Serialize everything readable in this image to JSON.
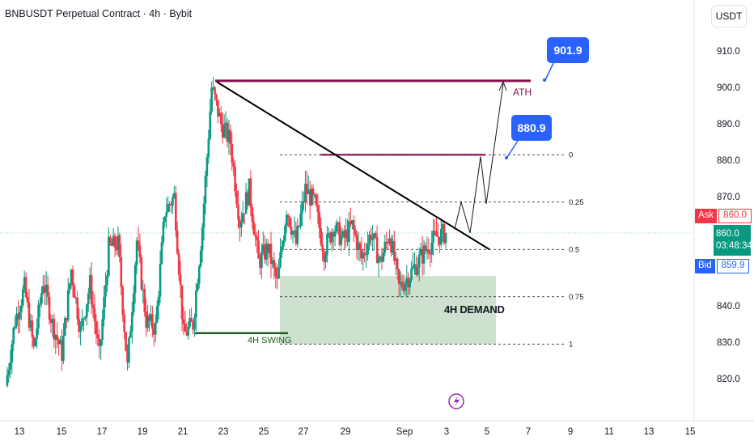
{
  "header": {
    "title": "BNBUSDT Perpetual Contract · 4h · Bybit",
    "currency": "USDT"
  },
  "chart_data": {
    "type": "candlestick",
    "x_ticks": [
      "13",
      "15",
      "17",
      "19",
      "21",
      "23",
      "25",
      "27",
      "29",
      "Sep",
      "3",
      "5",
      "7",
      "9",
      "11",
      "13",
      "15"
    ],
    "y_ticks": [
      "910.0",
      "900.0",
      "890.0",
      "880.0",
      "870.0",
      "860.0",
      "850.0",
      "840.0",
      "830.0",
      "820.0"
    ],
    "y_range": [
      815,
      917
    ],
    "price_labels": {
      "ask_label": "Ask",
      "ask_value": "860.0",
      "last_value": "860.0",
      "countdown": "03:48:34",
      "bid_label": "Bid",
      "bid_value": "859.9"
    },
    "fib_levels": [
      {
        "label": "0",
        "price": 881.5
      },
      {
        "label": "0.25",
        "price": 868.5
      },
      {
        "label": "0.5",
        "price": 855.5
      },
      {
        "label": "0.75",
        "price": 842.5
      },
      {
        "label": "1",
        "price": 829.5
      }
    ],
    "annotations": {
      "ath_label": "ATH",
      "ath_price": 901.8,
      "target_1": "901.9",
      "target_2": "880.9",
      "demand_label": "4H DEMAND",
      "swing_label": "4H SWING"
    },
    "colors": {
      "up": "#089981",
      "down": "#f23645",
      "demand_zone": "#a5c8a5",
      "resistance": "#880e4f",
      "trendline": "#000000",
      "swing_line": "#1b5e20",
      "callout": "#2962ff"
    }
  }
}
